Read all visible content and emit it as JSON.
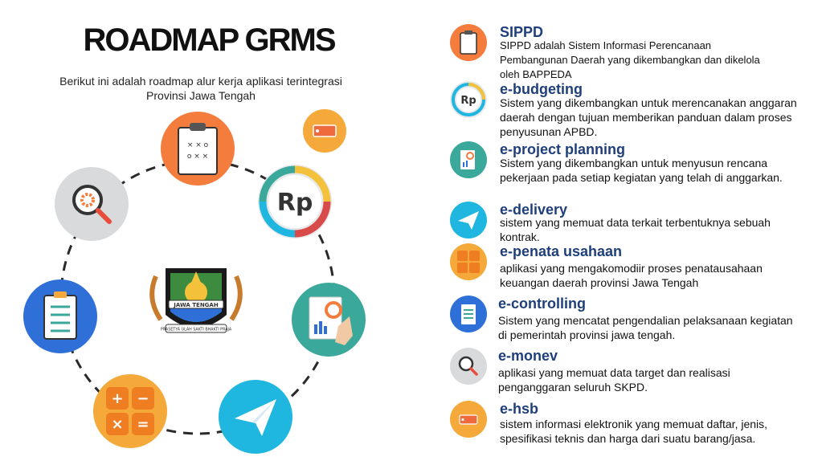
{
  "title": "ROADMAP GRMS",
  "subtitle": "Berikut ini adalah roadmap alur kerja aplikasi terintegrasi Provinsi Jawa Tengah",
  "emblem": {
    "banner_text": "JAWA TENGAH",
    "motto_text": "PRASETYA ULAH SAKTI BHAKTI PRAJA"
  },
  "colors": {
    "orange": "#f47c3c",
    "teal": "#3aa89a",
    "blue": "#2f6fd8",
    "gray": "#d8dadc",
    "yellow": "#f4a93a",
    "sky": "#1fb6e0",
    "heading": "#1f3f7a"
  },
  "items": [
    {
      "name": "SIPPD",
      "desc": "SIPPD adalah Sistem Informasi Perencanaan Pembangunan Daerah yang dikembangkan dan dikelola oleh BAPPEDA",
      "icon": "clipboard-strategy-icon"
    },
    {
      "name": "e-budgeting",
      "desc": "Sistem yang dikembangkan untuk merencanakan anggaran daerah dengan tujuan memberikan panduan dalam proses penyusunan APBD.",
      "icon": "rupiah-icon"
    },
    {
      "name": "e-project planning",
      "desc": "Sistem yang dikembangkan untuk menyusun rencana pekerjaan pada setiap kegiatan yang telah di anggarkan.",
      "icon": "report-document-icon"
    },
    {
      "name": "e-delivery",
      "desc": "sistem yang memuat data terkait terbentuknya sebuah kontrak.",
      "icon": "paper-plane-icon"
    },
    {
      "name": "e-penata usahaan",
      "desc": "aplikasi yang mengakomodiir proses penatausahaan keuangan daerah provinsi Jawa Tengah",
      "icon": "calculator-icon"
    },
    {
      "name": "e-controlling",
      "desc": "Sistem yang mencatat pengendalian pelaksanaan kegiatan di pemerintah provinsi jawa tengah.",
      "icon": "checklist-icon"
    },
    {
      "name": "e-monev",
      "desc": "aplikasi yang memuat data target dan realisasi penganggaran seluruh SKPD.",
      "icon": "magnifier-gear-icon"
    },
    {
      "name": "e-hsb",
      "desc": " sistem informasi elektronik yang memuat daftar, jenis, spesifikasi teknis dan harga dari suatu barang/jasa.",
      "icon": "price-tag-icon"
    }
  ]
}
